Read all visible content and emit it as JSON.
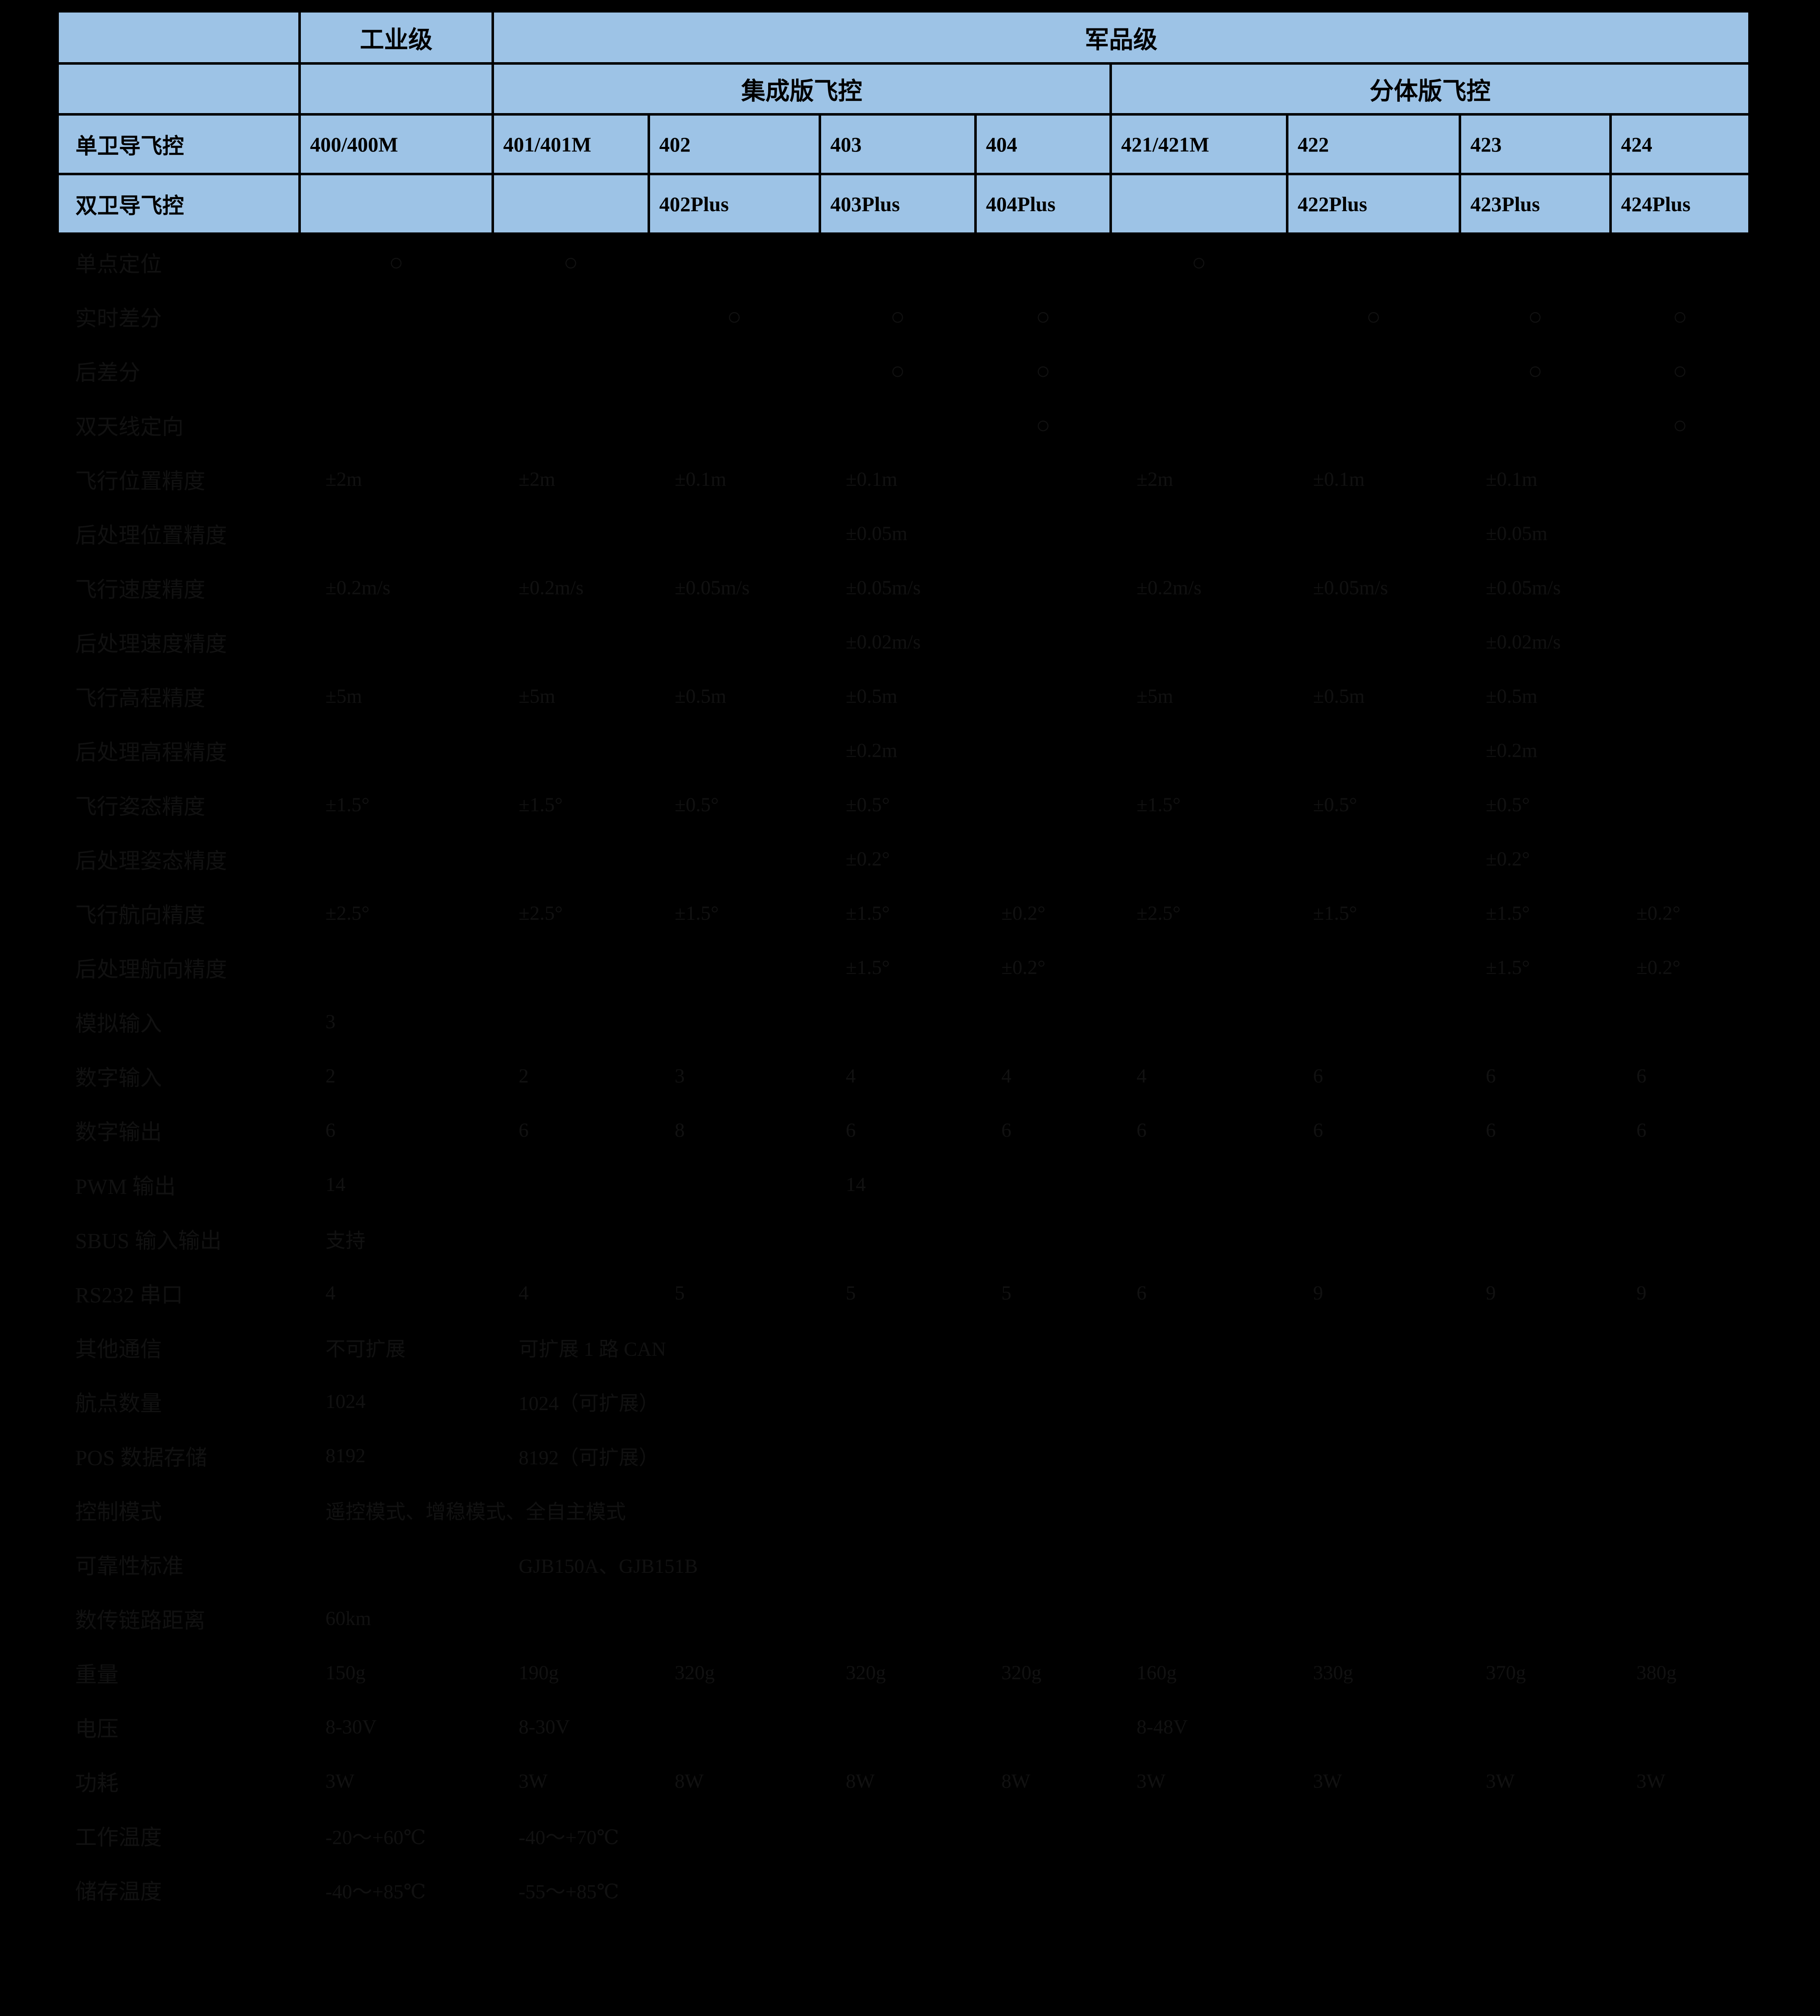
{
  "colors": {
    "background": "#000000",
    "header_bg": "#9DC3E6",
    "header_text": "#000000",
    "body_text": "#111111",
    "grid_line": "#000000"
  },
  "table": {
    "header": {
      "corner": "",
      "industrial": "工业级",
      "military": "军品级",
      "integrated": "集成版飞控",
      "split": "分体版飞控",
      "single_nav_label": "单卫导飞控",
      "dual_nav_label": "双卫导飞控",
      "single_nav_models": [
        "400/400M",
        "401/401M",
        "402",
        "403",
        "404",
        "421/421M",
        "422",
        "423",
        "424"
      ],
      "dual_nav_models": [
        "",
        "",
        "402Plus",
        "403Plus",
        "404Plus",
        "",
        "422Plus",
        "423Plus",
        "424Plus"
      ]
    },
    "rows": [
      {
        "label": "单点定位",
        "values": [
          "○",
          "○",
          "",
          "",
          "",
          "○",
          "",
          "",
          ""
        ]
      },
      {
        "label": "实时差分",
        "values": [
          "",
          "",
          "○",
          "○",
          "○",
          "",
          "○",
          "○",
          "○"
        ]
      },
      {
        "label": "后差分",
        "values": [
          "",
          "",
          "",
          "○",
          "○",
          "",
          "",
          "○",
          "○"
        ]
      },
      {
        "label": "双天线定向",
        "values": [
          "",
          "",
          "",
          "",
          "○",
          "",
          "",
          "",
          "○"
        ]
      },
      {
        "label": "飞行位置精度",
        "values": [
          "±2m",
          "±2m",
          "±0.1m",
          "±0.1m",
          "",
          "±2m",
          "±0.1m",
          "±0.1m",
          ""
        ]
      },
      {
        "label": "后处理位置精度",
        "values": [
          "",
          "",
          "",
          "±0.05m",
          "",
          "",
          "",
          "±0.05m",
          ""
        ]
      },
      {
        "label": "飞行速度精度",
        "values": [
          "±0.2m/s",
          "±0.2m/s",
          "±0.05m/s",
          "±0.05m/s",
          "",
          "±0.2m/s",
          "±0.05m/s",
          "±0.05m/s",
          ""
        ]
      },
      {
        "label": "后处理速度精度",
        "values": [
          "",
          "",
          "",
          "±0.02m/s",
          "",
          "",
          "",
          "±0.02m/s",
          ""
        ]
      },
      {
        "label": "飞行高程精度",
        "values": [
          "±5m",
          "±5m",
          "±0.5m",
          "±0.5m",
          "",
          "±5m",
          "±0.5m",
          "±0.5m",
          ""
        ]
      },
      {
        "label": "后处理高程精度",
        "values": [
          "",
          "",
          "",
          "±0.2m",
          "",
          "",
          "",
          "±0.2m",
          ""
        ]
      },
      {
        "label": "飞行姿态精度",
        "values": [
          "±1.5°",
          "±1.5°",
          "±0.5°",
          "±0.5°",
          "",
          "±1.5°",
          "±0.5°",
          "±0.5°",
          ""
        ]
      },
      {
        "label": "后处理姿态精度",
        "values": [
          "",
          "",
          "",
          "±0.2°",
          "",
          "",
          "",
          "±0.2°",
          ""
        ]
      },
      {
        "label": "飞行航向精度",
        "values": [
          "±2.5°",
          "±2.5°",
          "±1.5°",
          "±1.5°",
          "±0.2°",
          "±2.5°",
          "±1.5°",
          "±1.5°",
          "±0.2°"
        ]
      },
      {
        "label": "后处理航向精度",
        "values": [
          "",
          "",
          "",
          "±1.5°",
          "±0.2°",
          "",
          "",
          "±1.5°",
          "±0.2°"
        ]
      },
      {
        "label": "模拟输入",
        "values": [
          "3",
          "",
          "",
          "",
          "",
          "",
          "",
          "",
          ""
        ]
      },
      {
        "label": "数字输入",
        "values": [
          "2",
          "2",
          "3",
          "4",
          "4",
          "4",
          "6",
          "6",
          "6"
        ]
      },
      {
        "label": "数字输出",
        "values": [
          "6",
          "6",
          "8",
          "6",
          "6",
          "6",
          "6",
          "6",
          "6"
        ]
      },
      {
        "label": "PWM 输出",
        "values": [
          "14",
          "",
          "",
          "14",
          "",
          "",
          "",
          "",
          ""
        ]
      },
      {
        "label": "SBUS 输入输出",
        "values": [
          "支持",
          "",
          "",
          "",
          "",
          "",
          "",
          "",
          ""
        ]
      },
      {
        "label": "RS232 串口",
        "values": [
          "4",
          "4",
          "5",
          "5",
          "5",
          "6",
          "9",
          "9",
          "9"
        ]
      },
      {
        "label": "其他通信",
        "values": [
          "不可扩展",
          "可扩展 1 路 CAN",
          "",
          "",
          "",
          "",
          "",
          "",
          ""
        ]
      },
      {
        "label": "航点数量",
        "values": [
          "1024",
          "1024（可扩展）",
          "",
          "",
          "",
          "",
          "",
          "",
          ""
        ]
      },
      {
        "label": "POS 数据存储",
        "values": [
          "8192",
          "8192（可扩展）",
          "",
          "",
          "",
          "",
          "",
          "",
          ""
        ]
      },
      {
        "label": "控制模式",
        "values": [
          "遥控模式、增稳模式、全自主模式",
          "",
          "",
          "",
          "",
          "",
          "",
          "",
          ""
        ]
      },
      {
        "label": "可靠性标准",
        "values": [
          "",
          "GJB150A、GJB151B",
          "",
          "",
          "",
          "",
          "",
          "",
          ""
        ]
      },
      {
        "label": "数传链路距离",
        "values": [
          "60km",
          "",
          "",
          "",
          "",
          "",
          "",
          "",
          ""
        ]
      },
      {
        "label": "重量",
        "values": [
          "150g",
          "190g",
          "320g",
          "320g",
          "320g",
          "160g",
          "330g",
          "370g",
          "380g"
        ]
      },
      {
        "label": "电压",
        "values": [
          "8-30V",
          "8-30V",
          "",
          "",
          "",
          "8-48V",
          "",
          "",
          ""
        ]
      },
      {
        "label": "功耗",
        "values": [
          "3W",
          "3W",
          "8W",
          "8W",
          "8W",
          "3W",
          "3W",
          "3W",
          "3W"
        ]
      },
      {
        "label": "工作温度",
        "values": [
          "-20～+60℃",
          "-40～+70℃",
          "",
          "",
          "",
          "",
          "",
          "",
          ""
        ]
      },
      {
        "label": "储存温度",
        "values": [
          "-40～+85℃",
          "-55～+85℃",
          "",
          "",
          "",
          "",
          "",
          "",
          ""
        ]
      }
    ]
  }
}
